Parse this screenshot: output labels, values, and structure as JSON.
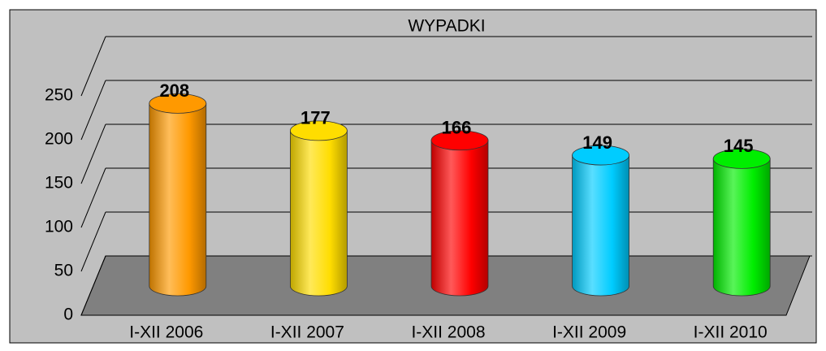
{
  "chart_data": {
    "type": "bar",
    "title": "WYPADKI",
    "categories": [
      "I-XII 2006",
      "I-XII 2007",
      "I-XII 2008",
      "I-XII 2009",
      "I-XII 2010"
    ],
    "values": [
      208,
      177,
      166,
      149,
      145
    ],
    "colors": [
      "#ff9900",
      "#ffdd00",
      "#ff0000",
      "#00ccff",
      "#00ee00"
    ],
    "ylim": [
      0,
      250
    ],
    "yticks": [
      0,
      50,
      100,
      150,
      200,
      250
    ],
    "grid": true
  }
}
